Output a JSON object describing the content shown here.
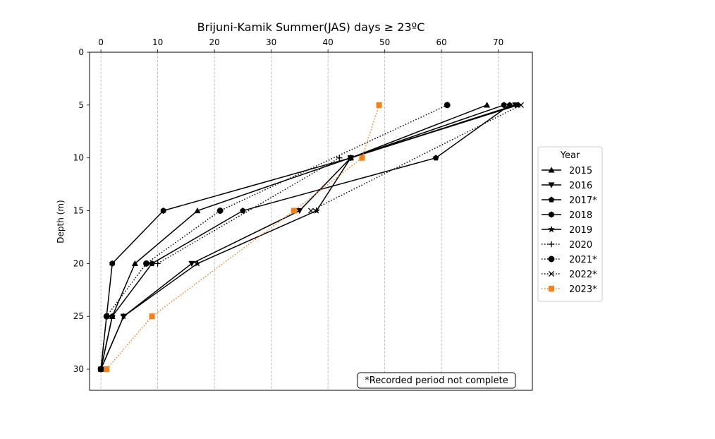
{
  "chart_data": {
    "type": "line",
    "title": "Brijuni-Kamik Summer(JAS) days ≥ 23ºC",
    "xlabel": "",
    "ylabel": "Depth (m)",
    "xlim": [
      -2,
      76
    ],
    "ylim": [
      32,
      0
    ],
    "x_ticks": [
      0,
      10,
      20,
      30,
      40,
      50,
      60,
      70
    ],
    "y_ticks": [
      0,
      5,
      10,
      15,
      20,
      25,
      30
    ],
    "grid": "vertical-dashed",
    "x_axis_position": "top",
    "legend_title": "Year",
    "legend_position": "right-outside",
    "note": "*Recorded period not complete",
    "series": [
      {
        "name": "2015",
        "color": "#000000",
        "linestyle": "solid",
        "marker": "triangle-up",
        "points": [
          [
            68,
            5
          ],
          [
            44,
            10
          ],
          [
            17,
            15
          ],
          [
            6,
            20
          ],
          [
            2,
            25
          ],
          [
            0,
            30
          ]
        ]
      },
      {
        "name": "2016",
        "color": "#000000",
        "linestyle": "solid",
        "marker": "triangle-down",
        "points": [
          [
            73,
            5
          ],
          [
            44,
            10
          ],
          [
            35,
            15
          ],
          [
            16,
            20
          ],
          [
            4,
            25
          ],
          [
            0,
            30
          ]
        ]
      },
      {
        "name": "2017*",
        "color": "#000000",
        "linestyle": "solid",
        "marker": "pentagon",
        "points": [
          [
            72,
            5
          ],
          [
            59,
            10
          ],
          [
            25,
            15
          ],
          [
            9,
            20
          ],
          [
            2,
            25
          ],
          [
            0,
            30
          ]
        ]
      },
      {
        "name": "2018",
        "color": "#000000",
        "linestyle": "solid",
        "marker": "hexagon",
        "points": [
          [
            71,
            5
          ],
          [
            44,
            10
          ],
          [
            11,
            15
          ],
          [
            2,
            20
          ],
          [
            1,
            25
          ],
          [
            0,
            30
          ]
        ]
      },
      {
        "name": "2019",
        "color": "#000000",
        "linestyle": "solid",
        "marker": "star",
        "points": [
          [
            73.5,
            5
          ],
          [
            44,
            10
          ],
          [
            38,
            15
          ],
          [
            17,
            20
          ],
          [
            4,
            25
          ],
          [
            0,
            30
          ]
        ]
      },
      {
        "name": "2020",
        "color": "#000000",
        "linestyle": "dotted",
        "marker": "plus",
        "points": [
          [
            42,
            10
          ],
          [
            10,
            20
          ]
        ]
      },
      {
        "name": "2021*",
        "color": "#000000",
        "linestyle": "dotted",
        "marker": "circle",
        "points": [
          [
            61,
            5
          ],
          [
            21,
            15
          ],
          [
            8,
            20
          ],
          [
            1,
            25
          ],
          [
            0,
            30
          ]
        ]
      },
      {
        "name": "2022*",
        "color": "#000000",
        "linestyle": "dotted",
        "marker": "x",
        "points": [
          [
            74,
            5
          ],
          [
            37,
            15
          ]
        ]
      },
      {
        "name": "2023*",
        "color": "#ff7f0e",
        "linestyle": "dotted",
        "marker": "square",
        "points": [
          [
            49,
            5
          ],
          [
            46,
            10
          ],
          [
            34,
            15
          ],
          [
            9,
            25
          ],
          [
            1,
            30
          ]
        ]
      }
    ]
  }
}
